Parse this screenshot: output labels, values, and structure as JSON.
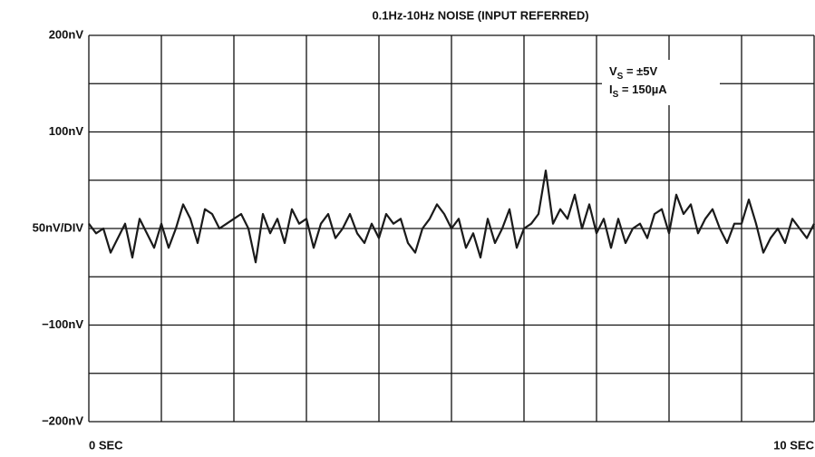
{
  "chart_data": {
    "type": "line",
    "title": "0.1Hz-10Hz NOISE (INPUT REFERRED)",
    "annotations": [
      [
        "V",
        "S",
        " = ±5V"
      ],
      [
        "I",
        "S",
        " = 150µA"
      ]
    ],
    "x": [
      0,
      0.1,
      0.2,
      0.3,
      0.4,
      0.5,
      0.6,
      0.7,
      0.8,
      0.9,
      1,
      1.1,
      1.2,
      1.3,
      1.4,
      1.5,
      1.6,
      1.7,
      1.8,
      1.9,
      2,
      2.1,
      2.2,
      2.3,
      2.4,
      2.5,
      2.6,
      2.7,
      2.8,
      2.9,
      3,
      3.1,
      3.2,
      3.3,
      3.4,
      3.5,
      3.6,
      3.7,
      3.8,
      3.9,
      4,
      4.1,
      4.2,
      4.3,
      4.4,
      4.5,
      4.6,
      4.7,
      4.8,
      4.9,
      5,
      5.1,
      5.2,
      5.3,
      5.4,
      5.5,
      5.6,
      5.7,
      5.8,
      5.9,
      6,
      6.1,
      6.2,
      6.3,
      6.4,
      6.5,
      6.6,
      6.7,
      6.8,
      6.9,
      7,
      7.1,
      7.2,
      7.3,
      7.4,
      7.5,
      7.6,
      7.7,
      7.8,
      7.9,
      8,
      8.1,
      8.2,
      8.3,
      8.4,
      8.5,
      8.6,
      8.7,
      8.8,
      8.9,
      9,
      9.1,
      9.2,
      9.3,
      9.4,
      9.5,
      9.6,
      9.7,
      9.8,
      9.9,
      10
    ],
    "series": [
      {
        "color": "#1a1a1a",
        "values": [
          5,
          -5,
          0,
          -25,
          -10,
          5,
          -30,
          10,
          -5,
          -20,
          5,
          -20,
          0,
          25,
          10,
          -15,
          20,
          15,
          0,
          5,
          10,
          15,
          0,
          -35,
          15,
          -5,
          10,
          -15,
          20,
          5,
          10,
          -20,
          5,
          15,
          -10,
          0,
          15,
          -5,
          -15,
          5,
          -10,
          15,
          5,
          10,
          -15,
          -25,
          0,
          10,
          25,
          15,
          0,
          10,
          -20,
          -5,
          -30,
          10,
          -15,
          0,
          20,
          -20,
          0,
          5,
          15,
          60,
          5,
          20,
          10,
          35,
          0,
          25,
          -5,
          10,
          -20,
          10,
          -15,
          0,
          5,
          -10,
          15,
          20,
          -5,
          35,
          15,
          25,
          -5,
          10,
          20,
          0,
          -15,
          5,
          5,
          30,
          5,
          -25,
          -10,
          0,
          -15,
          10,
          0,
          -10,
          5
        ]
      }
    ],
    "xlim": [
      0,
      10
    ],
    "xticks": [
      {
        "value": 0,
        "label": "0 SEC"
      },
      {
        "value": 10,
        "label": "10 SEC"
      }
    ],
    "xgrid": [
      0,
      1,
      2,
      3,
      4,
      5,
      6,
      7,
      8,
      9,
      10
    ],
    "ylim": [
      -200,
      200
    ],
    "yticks": [
      {
        "value": 200,
        "label": "200nV"
      },
      {
        "value": 100,
        "label": "100nV"
      },
      {
        "value": 0,
        "label": "50nV/DIV"
      },
      {
        "value": -100,
        "label": "−100nV"
      },
      {
        "value": -200,
        "label": "−200nV"
      }
    ],
    "ygrid": [
      -200,
      -150,
      -100,
      -50,
      0,
      50,
      100,
      150,
      200
    ],
    "grid": true
  }
}
